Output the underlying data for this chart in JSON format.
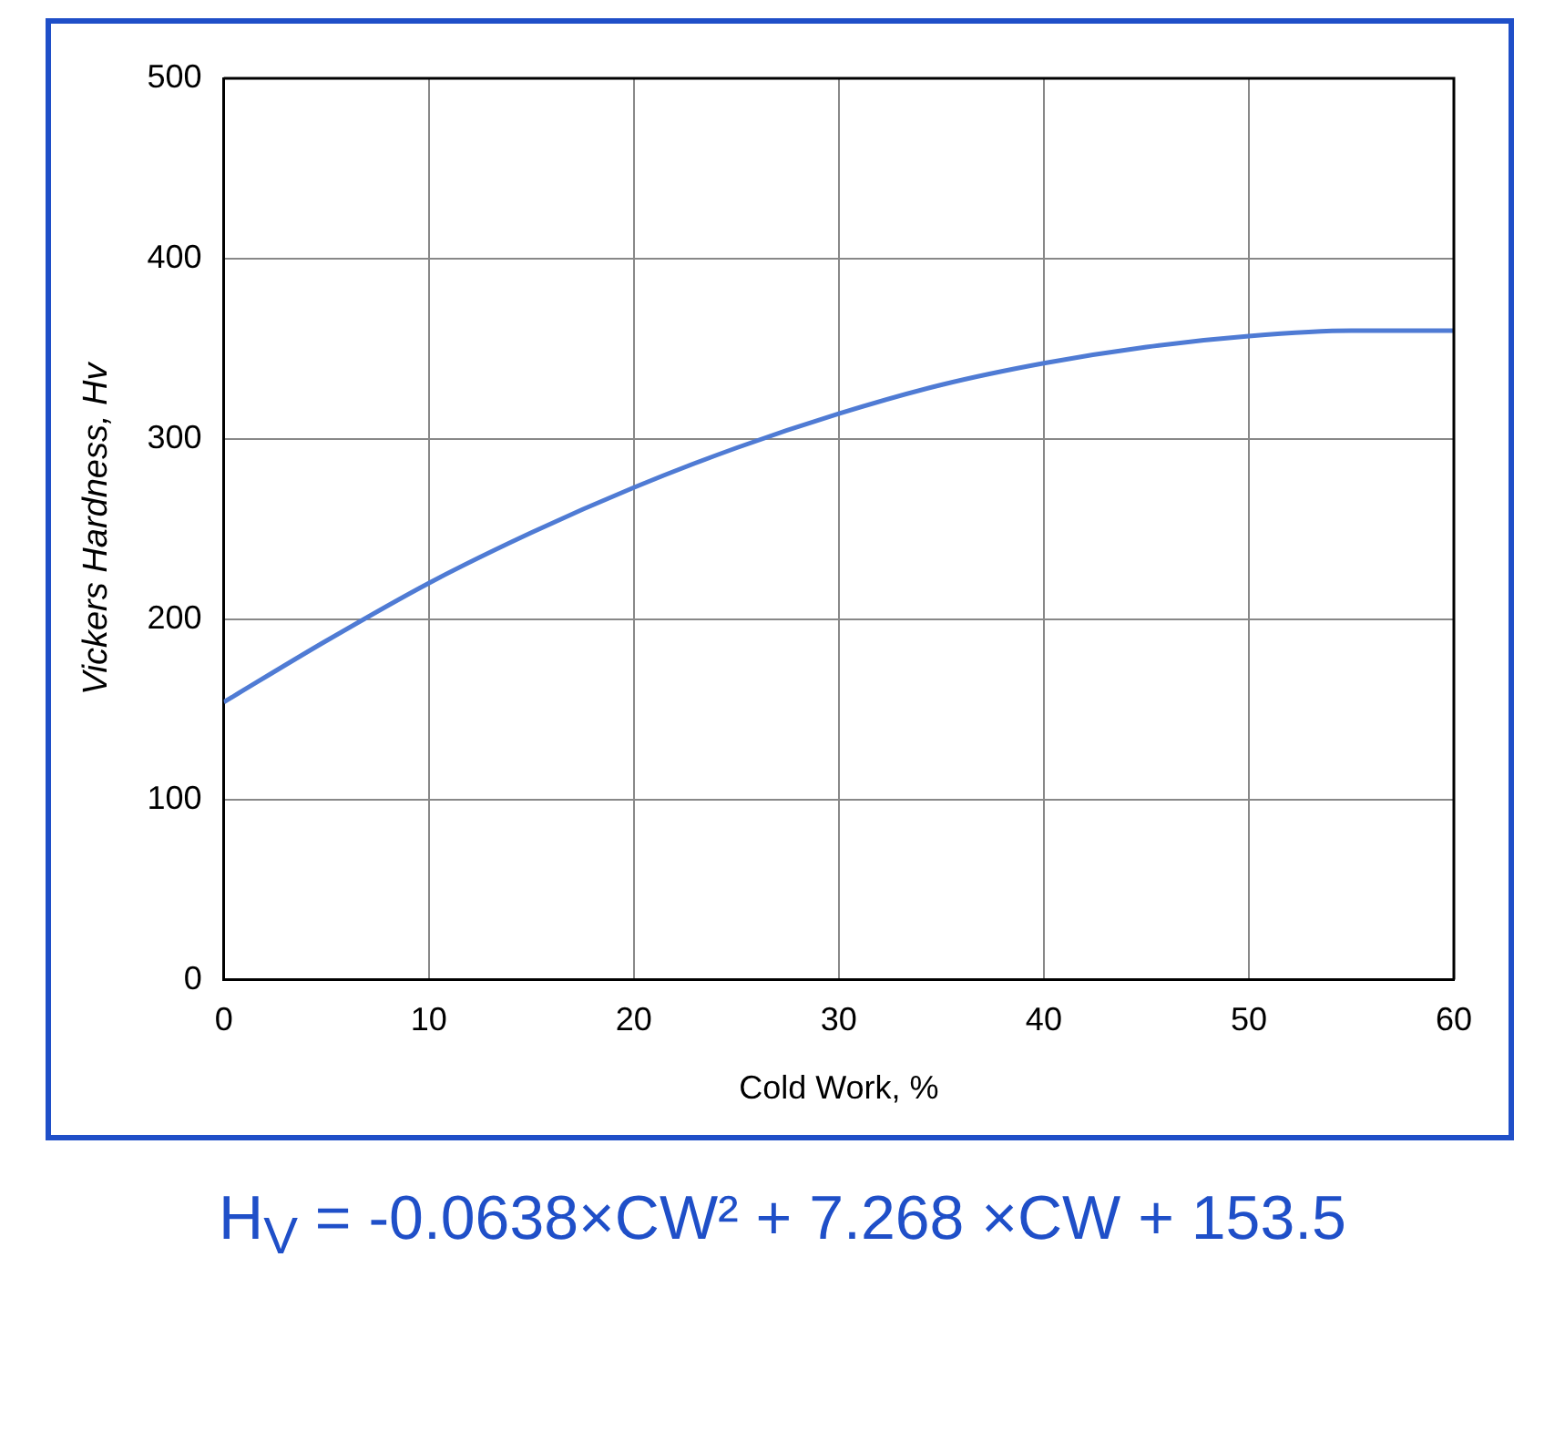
{
  "chart_data": {
    "type": "line",
    "xlabel": "Cold Work, %",
    "ylabel": "Vickers Hardness, Hv",
    "x": [
      0,
      5,
      10,
      15,
      20,
      25,
      30,
      35,
      40,
      45,
      50,
      55,
      60
    ],
    "series": [
      {
        "color": "#4f7bd4",
        "values": [
          154,
          188,
          220,
          248,
          273,
          295,
          314,
          330,
          342,
          351,
          357,
          360,
          360
        ]
      }
    ],
    "xlim": [
      0,
      60
    ],
    "xticks": [
      0,
      10,
      20,
      30,
      40,
      50,
      60
    ],
    "ylim": [
      0,
      500
    ],
    "yticks": [
      0,
      100,
      200,
      300,
      400,
      500
    ],
    "grid": true,
    "legend": false,
    "marker": "none",
    "line_style": "solid",
    "annotations": [
      "H$_{V}$ = -0.0638×CW² + 7.268 ×CW + 153.5"
    ]
  }
}
